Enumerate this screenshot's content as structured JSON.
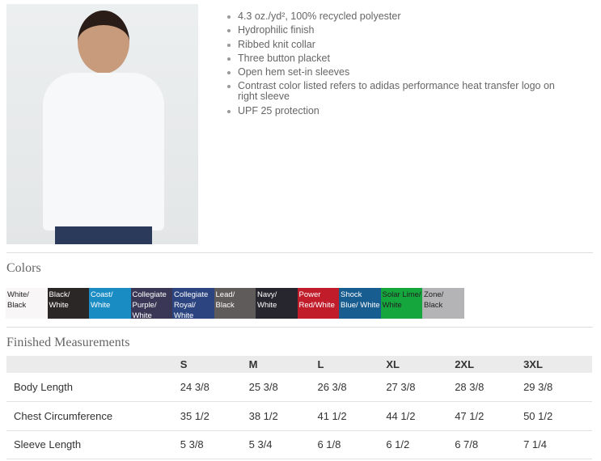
{
  "features": [
    "4.3 oz./yd², 100% recycled polyester",
    "Hydrophilic finish",
    "Ribbed knit collar",
    "Three button placket",
    "Open hem set-in sleeves",
    "Contrast color listed refers to adidas performance heat transfer logo on right sleeve",
    "UPF 25 protection"
  ],
  "colors_title": "Colors",
  "colors": [
    {
      "name": "White/ Black",
      "bg": "#f8f6f6",
      "fg": "#222"
    },
    {
      "name": "Black/ White",
      "bg": "#2b2726",
      "fg": "#fff"
    },
    {
      "name": "Coast/ White",
      "bg": "#1a8cc4",
      "fg": "#fff"
    },
    {
      "name": "Collegiate Purple/ White",
      "bg": "#3a3655",
      "fg": "#fff"
    },
    {
      "name": "Collegiate Royal/ White",
      "bg": "#2c4480",
      "fg": "#fff"
    },
    {
      "name": "Lead/ Black",
      "bg": "#5e5b5a",
      "fg": "#fff"
    },
    {
      "name": "Navy/ White",
      "bg": "#27262e",
      "fg": "#fff"
    },
    {
      "name": "Power Red/White",
      "bg": "#c11c2a",
      "fg": "#fff"
    },
    {
      "name": "Shock Blue/ White",
      "bg": "#185d8f",
      "fg": "#fff"
    },
    {
      "name": "Solar Lime/ White",
      "bg": "#16a63e",
      "fg": "#222"
    },
    {
      "name": "Zone/ Black",
      "bg": "#b4b4b6",
      "fg": "#222"
    }
  ],
  "measurements_title": "Finished Measurements",
  "sizes": [
    "S",
    "M",
    "L",
    "XL",
    "2XL",
    "3XL"
  ],
  "rows": [
    {
      "label": "Body Length",
      "values": [
        "24 3/8",
        "25 3/8",
        "26 3/8",
        "27 3/8",
        "28 3/8",
        "29 3/8"
      ]
    },
    {
      "label": "Chest Circumference",
      "values": [
        "35 1/2",
        "38 1/2",
        "41 1/2",
        "44 1/2",
        "47 1/2",
        "50 1/2"
      ]
    },
    {
      "label": "Sleeve Length",
      "values": [
        "5 3/8",
        "5 3/4",
        "6 1/8",
        "6 1/2",
        "6 7/8",
        "7 1/4"
      ]
    }
  ]
}
